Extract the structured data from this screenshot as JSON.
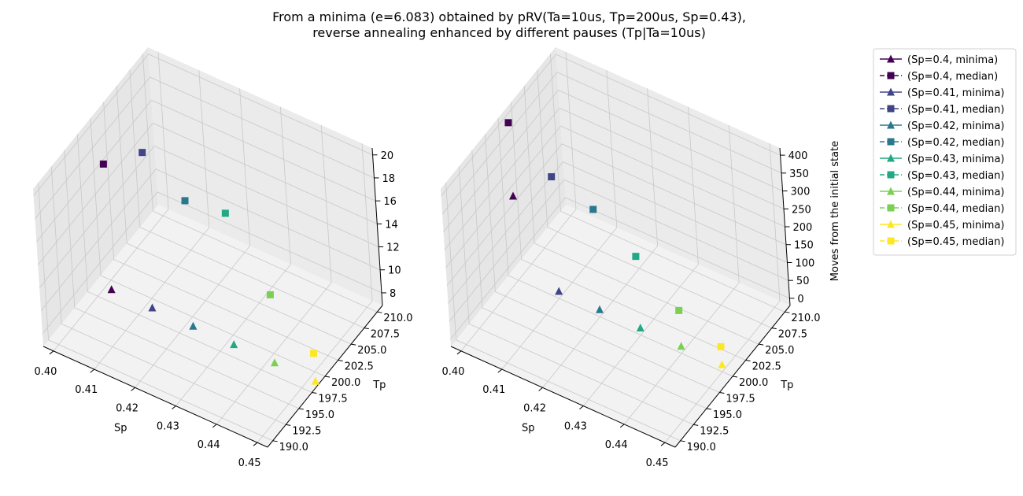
{
  "title_line1": "From a minima (e=6.083) obtained by pRV(Ta=10us, Tp=200us, Sp=0.43),",
  "title_line2": "reverse annealing enhanced by different pauses (Tp|Ta=10us)",
  "chart_data": [
    {
      "type": "scatter",
      "subtype": "3d",
      "xlabel": "Sp",
      "ylabel": "Tp",
      "zlabel": "",
      "xticks": [
        "0.40",
        "0.41",
        "0.42",
        "0.43",
        "0.44",
        "0.45"
      ],
      "yticks": [
        "190.0",
        "192.5",
        "195.0",
        "197.5",
        "200.0",
        "202.5",
        "205.0",
        "207.5",
        "210.0"
      ],
      "zticks": [
        "8",
        "10",
        "12",
        "14",
        "16",
        "18",
        "20"
      ],
      "xlim": [
        0.3975,
        0.4525
      ],
      "ylim": [
        189,
        211
      ],
      "zlim": [
        6.9,
        20.6
      ],
      "series": [
        {
          "name": "(Sp=0.4, minima)",
          "marker": "triangle",
          "color": "#440154",
          "points": [
            [
              0.4,
              200,
              6.083
            ]
          ]
        },
        {
          "name": "(Sp=0.4, median)",
          "marker": "square",
          "color": "#440154",
          "points": [
            [
              0.4,
              200,
              17.0
            ]
          ]
        },
        {
          "name": "(Sp=0.41, minima)",
          "marker": "triangle",
          "color": "#414487",
          "points": [
            [
              0.41,
              200,
              6.083
            ]
          ]
        },
        {
          "name": "(Sp=0.41, median)",
          "marker": "square",
          "color": "#414487",
          "points": [
            [
              0.41,
              200,
              19.6
            ]
          ]
        },
        {
          "name": "(Sp=0.42, minima)",
          "marker": "triangle",
          "color": "#2a788e",
          "points": [
            [
              0.42,
              200,
              6.083
            ]
          ]
        },
        {
          "name": "(Sp=0.42, median)",
          "marker": "square",
          "color": "#2a788e",
          "points": [
            [
              0.42,
              200,
              17.0
            ]
          ]
        },
        {
          "name": "(Sp=0.43, minima)",
          "marker": "triangle",
          "color": "#22a884",
          "points": [
            [
              0.43,
              200,
              6.083
            ]
          ]
        },
        {
          "name": "(Sp=0.43, median)",
          "marker": "square",
          "color": "#22a884",
          "points": [
            [
              0.43,
              200,
              17.5
            ]
          ]
        },
        {
          "name": "(Sp=0.44, minima)",
          "marker": "triangle",
          "color": "#7ad151",
          "points": [
            [
              0.44,
              200,
              6.083
            ]
          ]
        },
        {
          "name": "(Sp=0.44, median)",
          "marker": "square",
          "color": "#7ad151",
          "points": [
            [
              0.44,
              200,
              12.0
            ]
          ]
        },
        {
          "name": "(Sp=0.45, minima)",
          "marker": "triangle",
          "color": "#fde725",
          "points": [
            [
              0.45,
              200,
              6.083
            ]
          ]
        },
        {
          "name": "(Sp=0.45, median)",
          "marker": "square",
          "color": "#fde725",
          "points": [
            [
              0.45,
              200,
              8.5
            ]
          ]
        }
      ]
    },
    {
      "type": "scatter",
      "subtype": "3d",
      "xlabel": "Sp",
      "ylabel": "Tp",
      "zlabel": "Moves from the initial state",
      "xticks": [
        "0.40",
        "0.41",
        "0.42",
        "0.43",
        "0.44",
        "0.45"
      ],
      "yticks": [
        "190.0",
        "192.5",
        "195.0",
        "197.5",
        "200.0",
        "202.5",
        "205.0",
        "207.5",
        "210.0"
      ],
      "zticks": [
        "0",
        "50",
        "100",
        "150",
        "200",
        "250",
        "300",
        "350",
        "400"
      ],
      "xlim": [
        0.3975,
        0.4525
      ],
      "ylim": [
        189,
        211
      ],
      "zlim": [
        -20,
        420
      ],
      "series": [
        {
          "name": "(Sp=0.4, minima)",
          "marker": "triangle",
          "color": "#440154",
          "points": [
            [
              0.4,
              200,
              215
            ]
          ]
        },
        {
          "name": "(Sp=0.4, median)",
          "marker": "square",
          "color": "#440154",
          "points": [
            [
              0.4,
              200,
              420
            ]
          ]
        },
        {
          "name": "(Sp=0.41, minima)",
          "marker": "triangle",
          "color": "#414487",
          "points": [
            [
              0.41,
              200,
              0
            ]
          ]
        },
        {
          "name": "(Sp=0.41, median)",
          "marker": "square",
          "color": "#414487",
          "points": [
            [
              0.41,
              200,
              320
            ]
          ]
        },
        {
          "name": "(Sp=0.42, minima)",
          "marker": "triangle",
          "color": "#2a788e",
          "points": [
            [
              0.42,
              200,
              0
            ]
          ]
        },
        {
          "name": "(Sp=0.42, median)",
          "marker": "square",
          "color": "#2a788e",
          "points": [
            [
              0.42,
              200,
              280
            ]
          ]
        },
        {
          "name": "(Sp=0.43, minima)",
          "marker": "triangle",
          "color": "#22a884",
          "points": [
            [
              0.43,
              200,
              0
            ]
          ]
        },
        {
          "name": "(Sp=0.43, median)",
          "marker": "square",
          "color": "#22a884",
          "points": [
            [
              0.43,
              200,
              200
            ]
          ]
        },
        {
          "name": "(Sp=0.44, minima)",
          "marker": "triangle",
          "color": "#7ad151",
          "points": [
            [
              0.44,
              200,
              0
            ]
          ]
        },
        {
          "name": "(Sp=0.44, median)",
          "marker": "square",
          "color": "#7ad151",
          "points": [
            [
              0.44,
              200,
              100
            ]
          ]
        },
        {
          "name": "(Sp=0.45, minima)",
          "marker": "triangle",
          "color": "#fde725",
          "points": [
            [
              0.45,
              200,
              0
            ]
          ]
        },
        {
          "name": "(Sp=0.45, median)",
          "marker": "square",
          "color": "#fde725",
          "points": [
            [
              0.45,
              200,
              50
            ]
          ]
        }
      ]
    }
  ],
  "legend": {
    "position": "right",
    "entries": [
      {
        "label": "(Sp=0.4, minima)",
        "color": "#440154",
        "marker": "triangle",
        "line": "solid"
      },
      {
        "label": "(Sp=0.4, median)",
        "color": "#440154",
        "marker": "square",
        "line": "dashed"
      },
      {
        "label": "(Sp=0.41, minima)",
        "color": "#414487",
        "marker": "triangle",
        "line": "solid"
      },
      {
        "label": "(Sp=0.41, median)",
        "color": "#414487",
        "marker": "square",
        "line": "dashed"
      },
      {
        "label": "(Sp=0.42, minima)",
        "color": "#2a788e",
        "marker": "triangle",
        "line": "solid"
      },
      {
        "label": "(Sp=0.42, median)",
        "color": "#2a788e",
        "marker": "square",
        "line": "dashed"
      },
      {
        "label": "(Sp=0.43, minima)",
        "color": "#22a884",
        "marker": "triangle",
        "line": "solid"
      },
      {
        "label": "(Sp=0.43, median)",
        "color": "#22a884",
        "marker": "square",
        "line": "dashed"
      },
      {
        "label": "(Sp=0.44, minima)",
        "color": "#7ad151",
        "marker": "triangle",
        "line": "solid"
      },
      {
        "label": "(Sp=0.44, median)",
        "color": "#7ad151",
        "marker": "square",
        "line": "dashed"
      },
      {
        "label": "(Sp=0.45, minima)",
        "color": "#fde725",
        "marker": "triangle",
        "line": "solid"
      },
      {
        "label": "(Sp=0.45, median)",
        "color": "#fde725",
        "marker": "square",
        "line": "dashed"
      }
    ]
  }
}
